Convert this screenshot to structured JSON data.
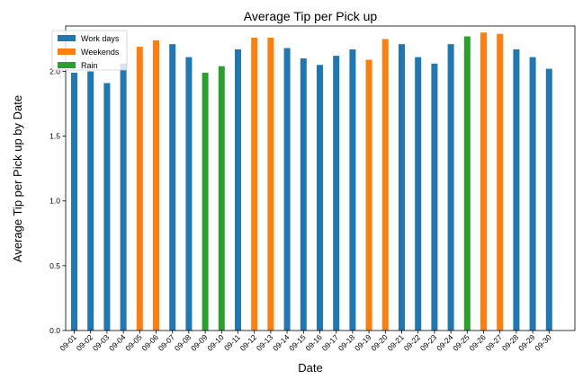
{
  "chart_data": {
    "type": "bar",
    "title": "Average Tip per Pick up",
    "xlabel": "Date",
    "ylabel": "Average Tip per Pick up by Date",
    "ylim": [
      0,
      2.35
    ],
    "yticks": [
      "0.0",
      "0.5",
      "1.0",
      "1.5",
      "2.0"
    ],
    "legend_position": "top-left",
    "grid": false,
    "categories": [
      "09-01",
      "09-02",
      "09-03",
      "09-04",
      "09-05",
      "09-06",
      "09-07",
      "09-08",
      "09-09",
      "09-10",
      "09-11",
      "09-12",
      "09-13",
      "09-14",
      "09-15",
      "09-16",
      "09-17",
      "09-18",
      "09-19",
      "09-20",
      "09-21",
      "09-22",
      "09-23",
      "09-24",
      "09-25",
      "09-26",
      "09-27",
      "09-28",
      "09-29",
      "09-30"
    ],
    "values": [
      1.99,
      2.0,
      1.91,
      2.06,
      2.19,
      2.24,
      2.21,
      2.11,
      1.99,
      2.04,
      2.17,
      2.26,
      2.26,
      2.18,
      2.1,
      2.05,
      2.12,
      2.17,
      2.09,
      2.25,
      2.21,
      2.11,
      2.06,
      2.21,
      2.27,
      2.3,
      2.29,
      2.17,
      2.11,
      2.02
    ],
    "groups": [
      "work",
      "work",
      "work",
      "work",
      "weekend",
      "weekend",
      "work",
      "work",
      "rain",
      "rain",
      "work",
      "weekend",
      "weekend",
      "work",
      "work",
      "work",
      "work",
      "work",
      "weekend",
      "weekend",
      "work",
      "work",
      "work",
      "work",
      "rain",
      "weekend",
      "weekend",
      "work",
      "work",
      "work"
    ],
    "series": [
      {
        "key": "work",
        "name": "Work days",
        "color": "#1f77b4"
      },
      {
        "key": "weekend",
        "name": "Weekends",
        "color": "#ff7f0e"
      },
      {
        "key": "rain",
        "name": "Rain",
        "color": "#2ca02c"
      }
    ]
  }
}
